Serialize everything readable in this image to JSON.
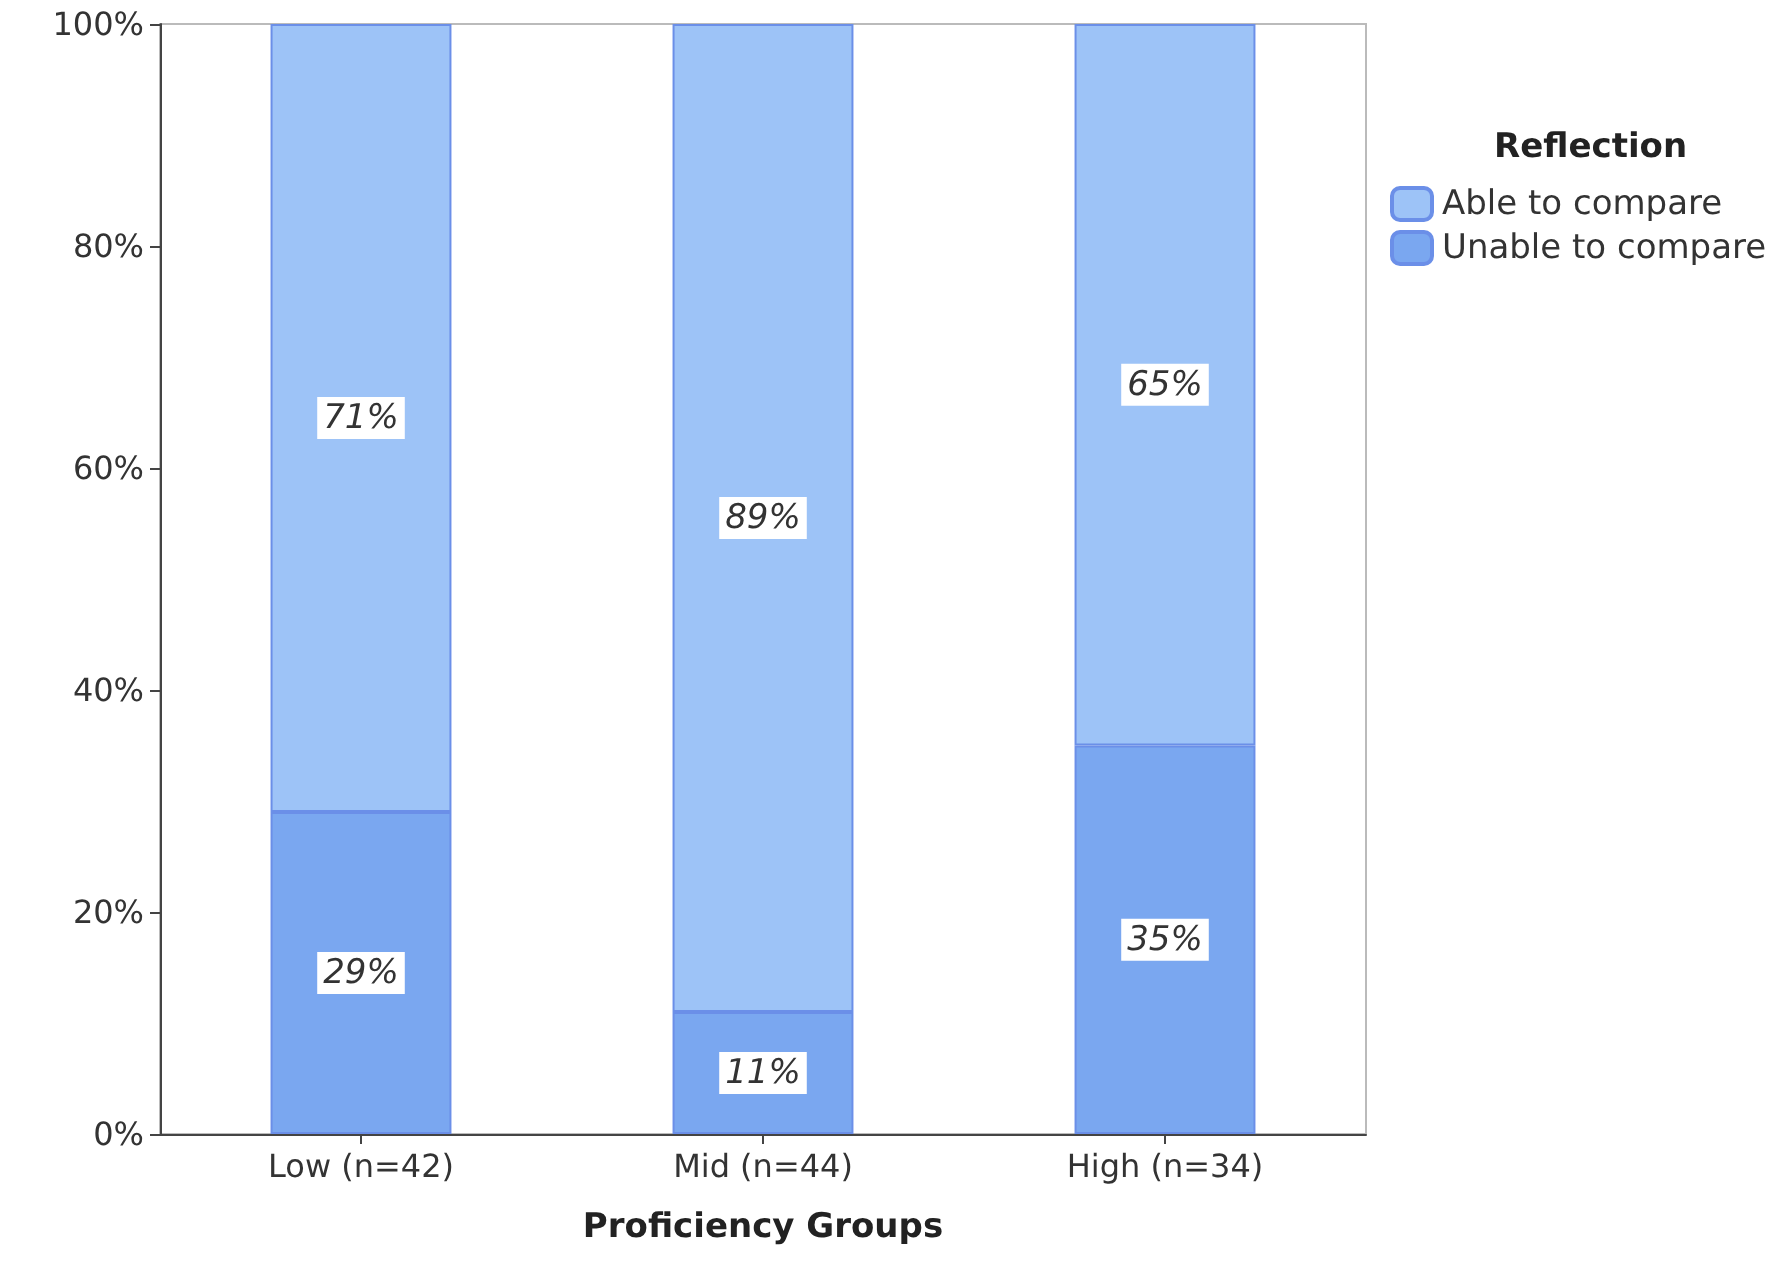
{
  "chart_data": {
    "type": "bar",
    "stacked": true,
    "xlabel": "Proficiency Groups",
    "legend_title": "Reflection",
    "legend": "right",
    "categories": [
      "Low (n=42)",
      "Mid (n=44)",
      "High (n=34)"
    ],
    "series": [
      {
        "name": "Unable to compare",
        "color": "#7aa7f0",
        "values": [
          29,
          11,
          35
        ],
        "value_labels": [
          "29%",
          "11%",
          "35%"
        ]
      },
      {
        "name": "Able to compare",
        "color": "#9dc3f7",
        "values": [
          71,
          89,
          65
        ],
        "value_labels": [
          "71%",
          "89%",
          "65%"
        ]
      }
    ],
    "ylim": [
      0,
      100
    ],
    "yticks": [
      {
        "value": 0,
        "label": "0%"
      },
      {
        "value": 20,
        "label": "20%"
      },
      {
        "value": 40,
        "label": "40%"
      },
      {
        "value": 60,
        "label": "60%"
      },
      {
        "value": 80,
        "label": "80%"
      },
      {
        "value": 100,
        "label": "100%"
      }
    ],
    "grid": false
  }
}
